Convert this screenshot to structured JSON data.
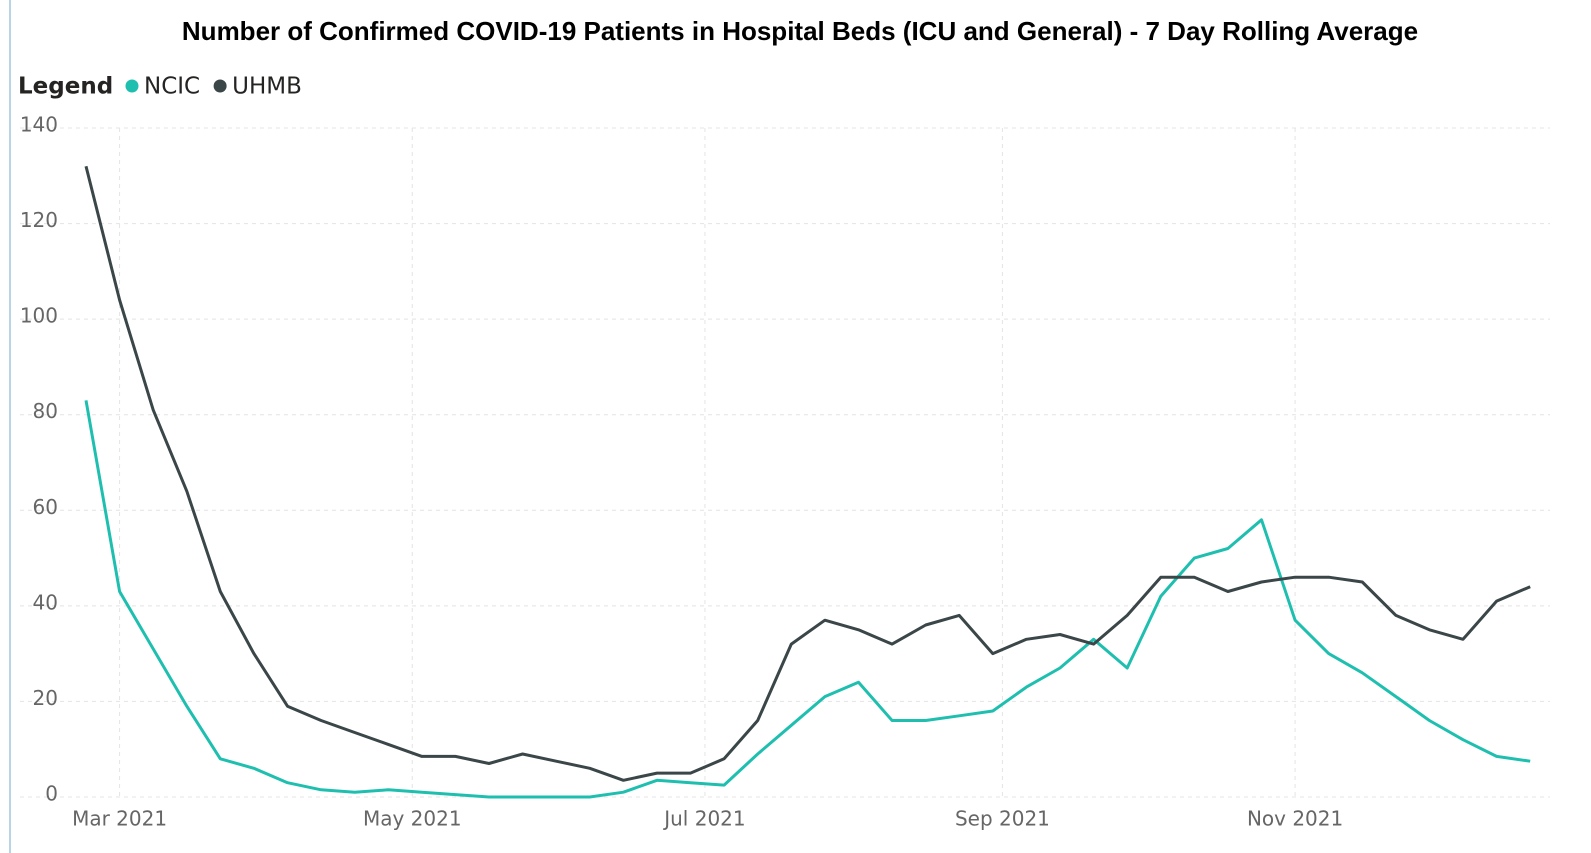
{
  "chart_data": {
    "type": "line",
    "title": "Number of Confirmed COVID-19 Patients in Hospital Beds (ICU and General) - 7 Day Rolling Average",
    "legend_title": "Legend",
    "x": [
      "2021-02-22",
      "2021-03-01",
      "2021-03-08",
      "2021-03-15",
      "2021-03-22",
      "2021-03-29",
      "2021-04-05",
      "2021-04-12",
      "2021-04-19",
      "2021-04-26",
      "2021-05-03",
      "2021-05-10",
      "2021-05-17",
      "2021-05-24",
      "2021-05-31",
      "2021-06-07",
      "2021-06-14",
      "2021-06-21",
      "2021-06-28",
      "2021-07-05",
      "2021-07-12",
      "2021-07-19",
      "2021-07-26",
      "2021-08-02",
      "2021-08-09",
      "2021-08-16",
      "2021-08-23",
      "2021-08-30",
      "2021-09-06",
      "2021-09-13",
      "2021-09-20",
      "2021-09-27",
      "2021-10-04",
      "2021-10-11",
      "2021-10-18",
      "2021-10-25",
      "2021-11-01",
      "2021-11-08",
      "2021-11-15",
      "2021-11-22",
      "2021-11-29",
      "2021-12-06",
      "2021-12-13",
      "2021-12-20"
    ],
    "series": [
      {
        "name": "NCIC",
        "color": "#1fbfb0",
        "values": [
          83,
          43,
          31,
          19,
          8,
          6,
          3,
          1.5,
          1,
          1.5,
          1,
          0.5,
          0,
          0,
          0,
          0,
          1,
          3.5,
          3,
          2.5,
          9,
          15,
          21,
          24,
          16,
          16,
          17,
          18,
          23,
          27,
          33,
          27,
          42,
          50,
          52,
          58,
          37,
          30,
          26,
          21,
          16,
          12,
          8.5,
          7.5
        ]
      },
      {
        "name": "UHMB",
        "color": "#3b4649",
        "values": [
          132,
          104,
          81,
          64,
          43,
          30,
          19,
          16,
          13.5,
          11,
          8.5,
          8.5,
          7,
          9,
          7.5,
          6,
          3.5,
          5,
          5,
          8,
          16,
          32,
          37,
          35,
          32,
          36,
          38,
          30,
          33,
          34,
          32,
          38,
          46,
          46,
          43,
          45,
          46,
          46,
          45,
          38,
          35,
          33,
          41,
          44
        ]
      }
    ],
    "xlim": [
      "2021-02-22",
      "2021-12-21"
    ],
    "xticks": [
      {
        "value": "2021-03-01",
        "label": "Mar 2021"
      },
      {
        "value": "2021-05-01",
        "label": "May 2021"
      },
      {
        "value": "2021-07-01",
        "label": "Jul 2021"
      },
      {
        "value": "2021-09-01",
        "label": "Sep 2021"
      },
      {
        "value": "2021-11-01",
        "label": "Nov 2021"
      }
    ],
    "ylim": [
      0,
      140
    ],
    "yticks": [
      0,
      20,
      40,
      60,
      80,
      100,
      120,
      140
    ],
    "grid": true
  }
}
